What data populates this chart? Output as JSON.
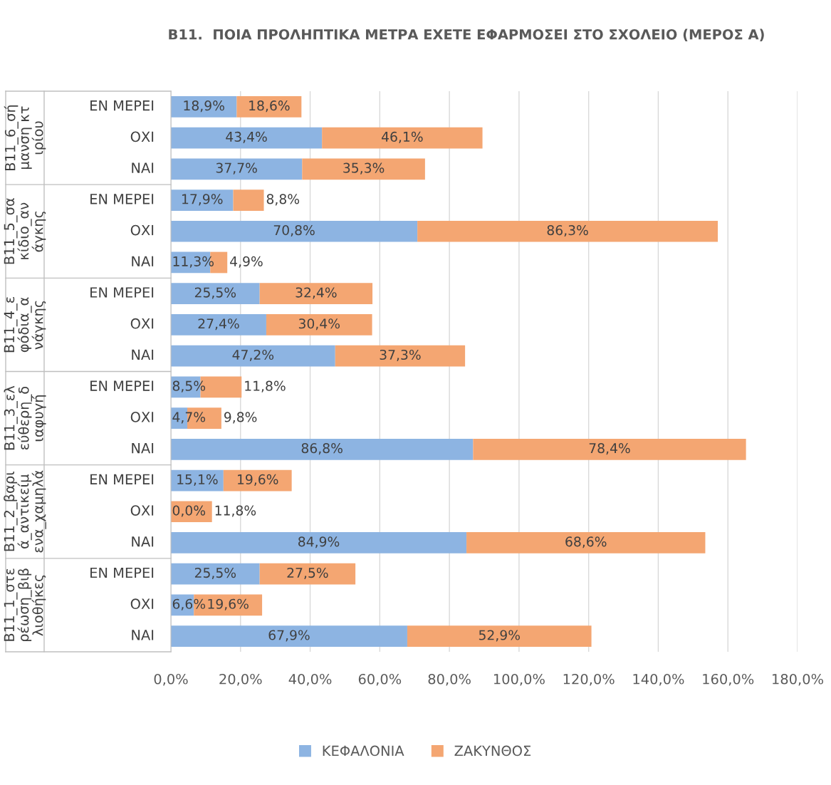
{
  "chart_data": {
    "type": "bar",
    "orientation": "horizontal",
    "stacked": true,
    "title": "B11.  ΠΟΙΑ ΠΡΟΛΗΠΤΙΚΑ ΜΕΤΡΑ ΕΧΕΤΕ ΕΦΑΡΜΟΣΕΙ ΣΤΟ ΣΧΟΛΕΙΟ (ΜΕΡΟΣ Α)",
    "categories": [
      "ΕΝ ΜΕΡΕΙ",
      "ΟΧΙ",
      "ΝΑΙ",
      "ΕΝ ΜΕΡΕΙ",
      "ΟΧΙ",
      "ΝΑΙ",
      "ΕΝ ΜΕΡΕΙ",
      "ΟΧΙ",
      "ΝΑΙ",
      "ΕΝ ΜΕΡΕΙ",
      "ΟΧΙ",
      "ΝΑΙ",
      "ΕΝ ΜΕΡΕΙ",
      "ΟΧΙ",
      "ΝΑΙ",
      "ΕΝ ΜΕΡΕΙ",
      "ΟΧΙ",
      "ΝΑΙ"
    ],
    "annotations": [
      "B11_6_σήμανση κτιρίου",
      "B11_5_σακίδιο_ανάγκης",
      "B11_4_εφόδια_ανάγκης",
      "B11_3_ελεύθερη_διαφυγή",
      "B11_2_βαριά_αντικείμενα_χαμηλά",
      "B11_1_στερέωση_βιβλιοθήκες"
    ],
    "series": [
      {
        "name": "ΚΕΦΑΛΟΝΙΑ",
        "color": "#8db4e2",
        "values": [
          18.9,
          43.4,
          37.7,
          17.9,
          70.8,
          11.3,
          25.5,
          27.4,
          47.2,
          8.5,
          4.7,
          86.8,
          15.1,
          0.0,
          84.9,
          25.5,
          6.6,
          67.9
        ],
        "value_labels": [
          "18,9%",
          "43,4%",
          "37,7%",
          "17,9%",
          "70,8%",
          "11,3%",
          "25,5%",
          "27,4%",
          "47,2%",
          "8,5%",
          "4,7%",
          "86,8%",
          "15,1%",
          "0,0%",
          "84,9%",
          "25,5%",
          "6,6%",
          "67,9%"
        ]
      },
      {
        "name": "ΖΑΚΥΝΘΟΣ",
        "color": "#f4a672",
        "values": [
          18.6,
          46.1,
          35.3,
          8.8,
          86.3,
          4.9,
          32.4,
          30.4,
          37.3,
          11.8,
          9.8,
          78.4,
          19.6,
          11.8,
          68.6,
          27.5,
          19.6,
          52.9
        ],
        "value_labels": [
          "18,6%",
          "46,1%",
          "35,3%",
          "8,8%",
          "86,3%",
          "4,9%",
          "32,4%",
          "30,4%",
          "37,3%",
          "11,8%",
          "9,8%",
          "78,4%",
          "19,6%",
          "11,8%",
          "68,6%",
          "27,5%",
          "19,6%",
          "52,9%"
        ]
      }
    ],
    "xlim": [
      0,
      180
    ],
    "xticks": [
      {
        "value": 0,
        "label": "0,0%"
      },
      {
        "value": 20,
        "label": "20,0%"
      },
      {
        "value": 40,
        "label": "40,0%"
      },
      {
        "value": 60,
        "label": "60,0%"
      },
      {
        "value": 80,
        "label": "80,0%"
      },
      {
        "value": 100,
        "label": "100,0%"
      },
      {
        "value": 120,
        "label": "120,0%"
      },
      {
        "value": 140,
        "label": "140,0%"
      },
      {
        "value": 160,
        "label": "160,0%"
      },
      {
        "value": 180,
        "label": "180,0%"
      }
    ],
    "grid": "x",
    "legend": "bottom"
  }
}
